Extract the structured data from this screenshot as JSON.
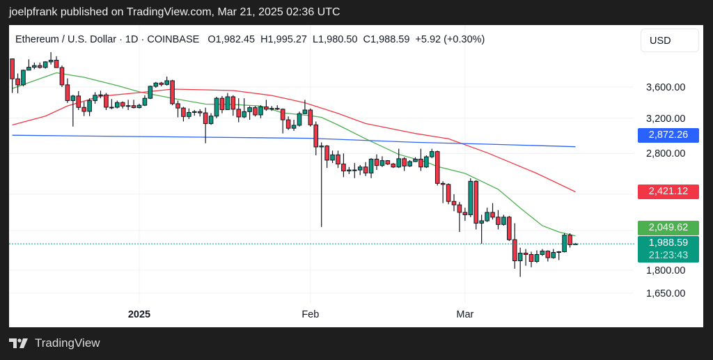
{
  "publish_bar": "joelpfrank published on TradingView.com, Mar 21, 2025 02:36 UTC",
  "legend": {
    "symbol": "Ethereum / U.S. Dollar · 1D · COINBASE",
    "open": "O1,982.45",
    "high": "H1,995.27",
    "low": "L1,980.50",
    "close": "C1,988.59",
    "change": "+5.92 (+0.30%)"
  },
  "currency_button": "USD",
  "footer_brand": "TradingView",
  "chart_data": {
    "type": "candlestick",
    "title": "",
    "y_scale": "log",
    "grid": true,
    "colors": {
      "up": "#089981",
      "down": "#f23645",
      "ma_fast": "#4caf50",
      "ma_mid": "#f23645",
      "ma_slow": "#2962ff"
    },
    "y_ticks": [
      "3,600.00",
      "3,200.00",
      "2,800.00",
      "1,800.00",
      "1,650.00"
    ],
    "y_tick_values": [
      3600,
      3200,
      2800,
      1800,
      1650
    ],
    "x_ticks": [
      {
        "label": "2025",
        "date": "2025-01-01",
        "bold": true
      },
      {
        "label": "Feb",
        "date": "2025-02-01"
      },
      {
        "label": "Mar",
        "date": "2025-03-01"
      }
    ],
    "price_tags": [
      {
        "label": "2,872.26",
        "value": 2872.26,
        "color": "#2962ff"
      },
      {
        "label": "2,421.12",
        "value": 2421.12,
        "color": "#f23645"
      },
      {
        "label": "2,049.62",
        "value": 2049.62,
        "color": "#4caf50"
      }
    ],
    "last_price": {
      "label": "1,988.59",
      "value": 1988.59,
      "countdown": "21:23:43",
      "color": "#089981"
    },
    "candles_columns": [
      "date",
      "open",
      "high",
      "low",
      "close"
    ],
    "candles": [
      [
        "2024-12-09",
        4005,
        4010,
        3520,
        3714
      ],
      [
        "2024-12-10",
        3714,
        3790,
        3515,
        3630
      ],
      [
        "2024-12-11",
        3630,
        3845,
        3610,
        3837
      ],
      [
        "2024-12-12",
        3837,
        3998,
        3840,
        3880
      ],
      [
        "2024-12-13",
        3880,
        3950,
        3850,
        3905
      ],
      [
        "2024-12-14",
        3905,
        3950,
        3860,
        3877
      ],
      [
        "2024-12-15",
        3877,
        3970,
        3860,
        3960
      ],
      [
        "2024-12-16",
        3960,
        4107,
        3920,
        3985
      ],
      [
        "2024-12-17",
        3985,
        4045,
        3870,
        3875
      ],
      [
        "2024-12-18",
        3875,
        3905,
        3600,
        3630
      ],
      [
        "2024-12-19",
        3630,
        3720,
        3390,
        3420
      ],
      [
        "2024-12-20",
        3420,
        3495,
        3100,
        3480
      ],
      [
        "2024-12-21",
        3480,
        3545,
        3300,
        3333
      ],
      [
        "2024-12-22",
        3333,
        3405,
        3225,
        3283
      ],
      [
        "2024-12-23",
        3283,
        3450,
        3225,
        3420
      ],
      [
        "2024-12-24",
        3420,
        3530,
        3380,
        3490
      ],
      [
        "2024-12-25",
        3490,
        3550,
        3450,
        3495
      ],
      [
        "2024-12-26",
        3495,
        3520,
        3300,
        3335
      ],
      [
        "2024-12-27",
        3335,
        3440,
        3310,
        3335
      ],
      [
        "2024-12-28",
        3335,
        3420,
        3320,
        3395
      ],
      [
        "2024-12-29",
        3395,
        3410,
        3320,
        3350
      ],
      [
        "2024-12-30",
        3350,
        3430,
        3300,
        3355
      ],
      [
        "2024-12-31",
        3355,
        3430,
        3320,
        3330
      ],
      [
        "2025-01-01",
        3330,
        3380,
        3320,
        3360
      ],
      [
        "2025-01-02",
        3360,
        3490,
        3350,
        3450
      ],
      [
        "2025-01-03",
        3450,
        3620,
        3440,
        3610
      ],
      [
        "2025-01-04",
        3610,
        3670,
        3590,
        3655
      ],
      [
        "2025-01-05",
        3655,
        3670,
        3610,
        3635
      ],
      [
        "2025-01-06",
        3635,
        3745,
        3620,
        3687
      ],
      [
        "2025-01-07",
        3687,
        3700,
        3360,
        3380
      ],
      [
        "2025-01-08",
        3380,
        3420,
        3210,
        3325
      ],
      [
        "2025-01-09",
        3325,
        3340,
        3160,
        3220
      ],
      [
        "2025-01-10",
        3220,
        3320,
        3190,
        3270
      ],
      [
        "2025-01-11",
        3270,
        3300,
        3230,
        3280
      ],
      [
        "2025-01-12",
        3280,
        3310,
        3220,
        3265
      ],
      [
        "2025-01-13",
        3265,
        3330,
        2910,
        3135
      ],
      [
        "2025-01-14",
        3135,
        3260,
        3120,
        3225
      ],
      [
        "2025-01-15",
        3225,
        3470,
        3200,
        3450
      ],
      [
        "2025-01-16",
        3450,
        3480,
        3260,
        3305
      ],
      [
        "2025-01-17",
        3305,
        3520,
        3300,
        3470
      ],
      [
        "2025-01-18",
        3470,
        3490,
        3230,
        3310
      ],
      [
        "2025-01-19",
        3310,
        3450,
        3150,
        3215
      ],
      [
        "2025-01-20",
        3215,
        3450,
        3200,
        3280
      ],
      [
        "2025-01-21",
        3280,
        3350,
        3180,
        3330
      ],
      [
        "2025-01-22",
        3330,
        3350,
        3220,
        3240
      ],
      [
        "2025-01-23",
        3240,
        3360,
        3200,
        3340
      ],
      [
        "2025-01-24",
        3340,
        3430,
        3290,
        3310
      ],
      [
        "2025-01-25",
        3310,
        3350,
        3290,
        3320
      ],
      [
        "2025-01-26",
        3320,
        3360,
        3300,
        3310
      ],
      [
        "2025-01-27",
        3310,
        3320,
        3020,
        3180
      ],
      [
        "2025-01-28",
        3180,
        3220,
        3060,
        3080
      ],
      [
        "2025-01-29",
        3080,
        3180,
        3050,
        3115
      ],
      [
        "2025-01-30",
        3115,
        3280,
        3100,
        3255
      ],
      [
        "2025-01-31",
        3255,
        3430,
        3250,
        3300
      ],
      [
        "2025-02-01",
        3300,
        3320,
        3100,
        3120
      ],
      [
        "2025-02-02",
        3120,
        3160,
        2780,
        2870
      ],
      [
        "2025-02-03",
        2870,
        2920,
        2120,
        2880
      ],
      [
        "2025-02-04",
        2880,
        2890,
        2650,
        2730
      ],
      [
        "2025-02-05",
        2730,
        2830,
        2700,
        2785
      ],
      [
        "2025-02-06",
        2785,
        2830,
        2650,
        2690
      ],
      [
        "2025-02-07",
        2690,
        2800,
        2560,
        2620
      ],
      [
        "2025-02-08",
        2620,
        2660,
        2590,
        2630
      ],
      [
        "2025-02-09",
        2630,
        2700,
        2550,
        2630
      ],
      [
        "2025-02-10",
        2630,
        2680,
        2580,
        2660
      ],
      [
        "2025-02-11",
        2660,
        2710,
        2570,
        2600
      ],
      [
        "2025-02-12",
        2600,
        2750,
        2550,
        2740
      ],
      [
        "2025-02-13",
        2740,
        2790,
        2630,
        2675
      ],
      [
        "2025-02-14",
        2675,
        2770,
        2660,
        2725
      ],
      [
        "2025-02-15",
        2725,
        2730,
        2680,
        2690
      ],
      [
        "2025-02-16",
        2690,
        2700,
        2650,
        2660
      ],
      [
        "2025-02-17",
        2660,
        2850,
        2650,
        2745
      ],
      [
        "2025-02-18",
        2745,
        2760,
        2620,
        2670
      ],
      [
        "2025-02-19",
        2670,
        2730,
        2660,
        2715
      ],
      [
        "2025-02-20",
        2715,
        2760,
        2710,
        2740
      ],
      [
        "2025-02-21",
        2740,
        2850,
        2620,
        2660
      ],
      [
        "2025-02-22",
        2660,
        2780,
        2650,
        2765
      ],
      [
        "2025-02-23",
        2765,
        2850,
        2750,
        2820
      ],
      [
        "2025-02-24",
        2820,
        2830,
        2480,
        2500
      ],
      [
        "2025-02-25",
        2500,
        2520,
        2320,
        2490
      ],
      [
        "2025-02-26",
        2490,
        2500,
        2310,
        2335
      ],
      [
        "2025-02-27",
        2335,
        2400,
        2250,
        2305
      ],
      [
        "2025-02-28",
        2305,
        2330,
        2080,
        2240
      ],
      [
        "2025-03-01",
        2240,
        2280,
        2170,
        2220
      ],
      [
        "2025-03-02",
        2220,
        2550,
        2200,
        2520
      ],
      [
        "2025-03-03",
        2520,
        2530,
        2100,
        2150
      ],
      [
        "2025-03-04",
        2150,
        2220,
        1990,
        2170
      ],
      [
        "2025-03-05",
        2170,
        2280,
        2160,
        2240
      ],
      [
        "2025-03-06",
        2240,
        2320,
        2180,
        2200
      ],
      [
        "2025-03-07",
        2200,
        2260,
        2100,
        2140
      ],
      [
        "2025-03-08",
        2140,
        2220,
        2130,
        2200
      ],
      [
        "2025-03-09",
        2200,
        2210,
        2010,
        2020
      ],
      [
        "2025-03-10",
        2020,
        2150,
        1810,
        1865
      ],
      [
        "2025-03-11",
        1865,
        1960,
        1755,
        1920
      ],
      [
        "2025-03-12",
        1920,
        1950,
        1830,
        1910
      ],
      [
        "2025-03-13",
        1910,
        1930,
        1820,
        1860
      ],
      [
        "2025-03-14",
        1860,
        1940,
        1850,
        1910
      ],
      [
        "2025-03-15",
        1910,
        1950,
        1900,
        1935
      ],
      [
        "2025-03-16",
        1935,
        1940,
        1860,
        1887
      ],
      [
        "2025-03-17",
        1887,
        1950,
        1880,
        1925
      ],
      [
        "2025-03-18",
        1925,
        1935,
        1870,
        1930
      ],
      [
        "2025-03-19",
        1930,
        2070,
        1925,
        2055
      ],
      [
        "2025-03-20",
        2055,
        2070,
        1960,
        1982
      ],
      [
        "2025-03-21",
        1982.45,
        1995.27,
        1980.5,
        1988.59
      ]
    ],
    "moving_averages": [
      {
        "color": "#4caf50",
        "points": [
          [
            "2024-12-09",
            3580
          ],
          [
            "2024-12-17",
            3800
          ],
          [
            "2024-12-22",
            3735
          ],
          [
            "2024-12-28",
            3620
          ],
          [
            "2025-01-01",
            3535
          ],
          [
            "2025-01-07",
            3450
          ],
          [
            "2025-01-13",
            3375
          ],
          [
            "2025-01-18",
            3370
          ],
          [
            "2025-01-23",
            3350
          ],
          [
            "2025-01-27",
            3265
          ],
          [
            "2025-02-01",
            3230
          ],
          [
            "2025-02-03",
            3210
          ],
          [
            "2025-02-06",
            3118
          ],
          [
            "2025-02-11",
            2960
          ],
          [
            "2025-02-17",
            2790
          ],
          [
            "2025-02-22",
            2710
          ],
          [
            "2025-02-24",
            2665
          ],
          [
            "2025-03-01",
            2596
          ],
          [
            "2025-03-07",
            2445
          ],
          [
            "2025-03-11",
            2277
          ],
          [
            "2025-03-15",
            2130
          ],
          [
            "2025-03-18",
            2080
          ],
          [
            "2025-03-21",
            2049.62
          ]
        ]
      },
      {
        "color": "#f23645",
        "points": [
          [
            "2024-12-09",
            3118
          ],
          [
            "2024-12-15",
            3225
          ],
          [
            "2024-12-19",
            3352
          ],
          [
            "2024-12-25",
            3477
          ],
          [
            "2025-01-01",
            3525
          ],
          [
            "2025-01-07",
            3572
          ],
          [
            "2025-01-13",
            3562
          ],
          [
            "2025-01-18",
            3553
          ],
          [
            "2025-01-25",
            3487
          ],
          [
            "2025-01-31",
            3392
          ],
          [
            "2025-02-06",
            3258
          ],
          [
            "2025-02-11",
            3136
          ],
          [
            "2025-02-20",
            3020
          ],
          [
            "2025-02-26",
            2960
          ],
          [
            "2025-03-05",
            2808
          ],
          [
            "2025-03-14",
            2596
          ],
          [
            "2025-03-21",
            2421.12
          ]
        ]
      },
      {
        "color": "#2962ff",
        "points": [
          [
            "2024-12-09",
            3000
          ],
          [
            "2025-01-01",
            2985
          ],
          [
            "2025-02-01",
            2965
          ],
          [
            "2025-02-20",
            2920
          ],
          [
            "2025-03-05",
            2900
          ],
          [
            "2025-03-21",
            2872.26
          ]
        ]
      }
    ]
  }
}
